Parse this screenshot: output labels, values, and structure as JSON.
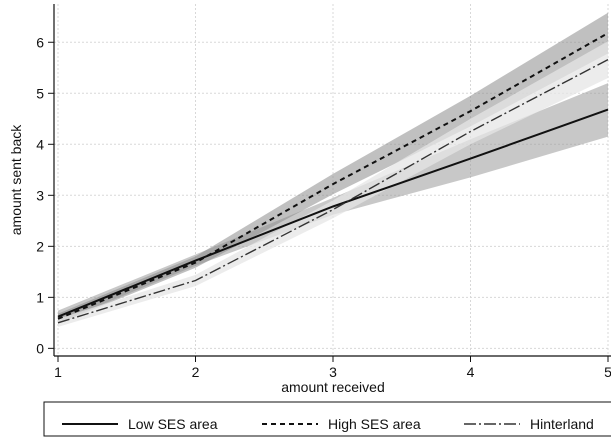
{
  "chart_data": {
    "type": "line",
    "title": "",
    "xlabel": "amount received",
    "ylabel": "amount sent back",
    "xlim": [
      1,
      5
    ],
    "ylim": [
      -0.15,
      6.75
    ],
    "x_ticks": [
      "1",
      "2",
      "3",
      "4",
      "5"
    ],
    "y_ticks": [
      "0",
      "1",
      "2",
      "3",
      "4",
      "5",
      "6"
    ],
    "grid": true,
    "legend_position": "bottom",
    "x": [
      1,
      2,
      3,
      4,
      5
    ],
    "series": [
      {
        "name": "Low SES area",
        "style": "solid",
        "color": "#111111",
        "values": [
          0.62,
          1.72,
          2.78,
          3.72,
          4.68
        ],
        "ci_lower": [
          0.5,
          1.62,
          2.62,
          3.35,
          4.15
        ],
        "ci_upper": [
          0.74,
          1.84,
          2.95,
          4.1,
          5.2
        ]
      },
      {
        "name": "High SES area",
        "style": "dashed",
        "color": "#111111",
        "values": [
          0.58,
          1.68,
          3.22,
          4.65,
          6.18
        ],
        "ci_lower": [
          0.48,
          1.58,
          3.02,
          4.35,
          5.78
        ],
        "ci_upper": [
          0.68,
          1.8,
          3.42,
          4.95,
          6.58
        ]
      },
      {
        "name": "Hinterland",
        "style": "dash-dot",
        "color": "#333333",
        "values": [
          0.5,
          1.33,
          2.72,
          4.25,
          5.66
        ],
        "ci_lower": [
          0.42,
          1.22,
          2.55,
          4.0,
          5.3
        ],
        "ci_upper": [
          0.58,
          1.44,
          2.9,
          4.5,
          6.02
        ]
      }
    ]
  }
}
